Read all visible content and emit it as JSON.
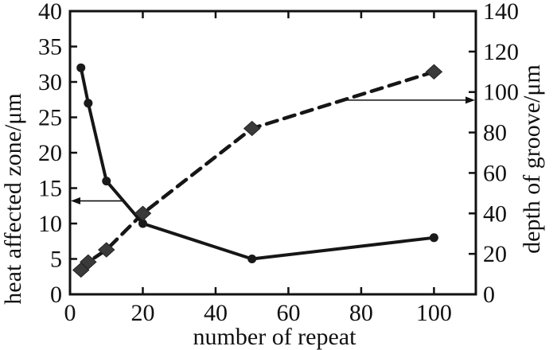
{
  "chart_data": {
    "type": "line",
    "title": "",
    "xlabel": "number of repeat",
    "ylabel_left": "heat affected zone/μm",
    "ylabel_right": "depth of groove/μm",
    "x": [
      3,
      5,
      10,
      20,
      50,
      100
    ],
    "series": [
      {
        "name": "heat affected zone",
        "axis": "left",
        "line_style": "solid",
        "marker": "circle",
        "values": [
          32,
          27,
          16,
          10,
          5,
          8
        ]
      },
      {
        "name": "depth of groove",
        "axis": "right",
        "line_style": "dashed",
        "marker": "diamond",
        "values": [
          12,
          16,
          22,
          40,
          82,
          110
        ]
      }
    ],
    "x_ticks": [
      0,
      20,
      40,
      60,
      80,
      100
    ],
    "xlim": [
      0,
      111.5
    ],
    "y_left": {
      "ticks": [
        0,
        5,
        10,
        15,
        20,
        25,
        30,
        35,
        40
      ],
      "lim": [
        0,
        40
      ]
    },
    "y_right": {
      "ticks": [
        0,
        20,
        40,
        60,
        80,
        100,
        120,
        140
      ],
      "lim": [
        0,
        140
      ]
    },
    "grid": false,
    "legend": "none",
    "annotations": [
      {
        "type": "arrow",
        "axis": "left",
        "y": 13.2,
        "from_x": 15,
        "to_x": 0,
        "direction": "left"
      },
      {
        "type": "arrow",
        "axis": "right",
        "y": 96,
        "from_x": 74,
        "to_x": 111.5,
        "direction": "right"
      }
    ],
    "colors": {
      "background": "#ffffff",
      "axis": "#111111",
      "line": "#161616",
      "circle_fill": "#1a1a1a",
      "diamond_fill": "#3a3a3a",
      "text": "#111111"
    }
  }
}
